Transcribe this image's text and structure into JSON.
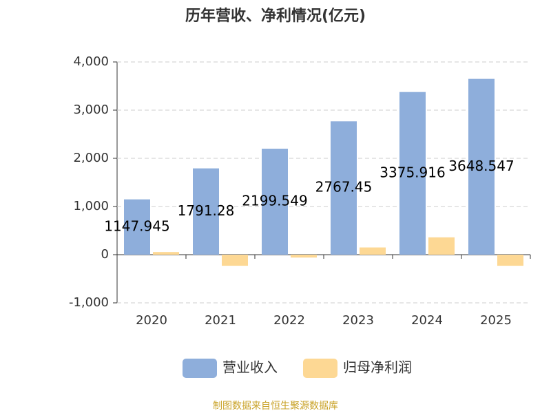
{
  "chart_data": {
    "type": "bar",
    "title": "历年营收、净利情况(亿元)",
    "categories": [
      "2020",
      "2021",
      "2022",
      "2023",
      "2024",
      "2025"
    ],
    "series": [
      {
        "name": "营业收入",
        "color": "#8eaedb",
        "values": [
          1147.945,
          1791.28,
          2199.549,
          2767.45,
          3375.916,
          3648.547
        ],
        "show_labels": true
      },
      {
        "name": "归母净利润",
        "color": "#fdd894",
        "values": [
          55,
          -230,
          -60,
          150,
          360,
          -230
        ]
      }
    ],
    "ylim": [
      -1000,
      4000
    ],
    "yticks": [
      {
        "value": -1000,
        "label": "-1,000"
      },
      0,
      {
        "value": 1000,
        "label": "1,000"
      },
      {
        "value": 2000,
        "label": "2,000"
      },
      {
        "value": 3000,
        "label": "3,000"
      },
      {
        "value": 4000,
        "label": "4,000"
      }
    ],
    "grid": true,
    "legend": "bottom",
    "source": "制图数据来自恒生聚源数据库"
  }
}
